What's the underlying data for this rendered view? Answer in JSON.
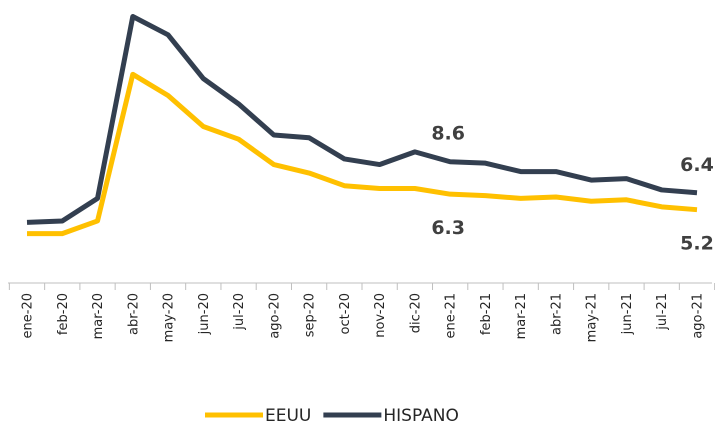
{
  "chart_data": {
    "type": "line",
    "categories": [
      "ene-20",
      "feb-20",
      "mar-20",
      "abr-20",
      "may-20",
      "jun-20",
      "jul-20",
      "ago-20",
      "sep-20",
      "oct-20",
      "nov-20",
      "dic-20",
      "ene-21",
      "feb-21",
      "mar-21",
      "abr-21",
      "may-21",
      "jun-21",
      "jul-21",
      "ago-21"
    ],
    "series": [
      {
        "name": "EEUU",
        "color": "#ffc000",
        "values": [
          3.5,
          3.5,
          4.4,
          14.8,
          13.3,
          11.1,
          10.2,
          8.4,
          7.8,
          6.9,
          6.7,
          6.7,
          6.3,
          6.2,
          6.0,
          6.1,
          5.8,
          5.9,
          5.4,
          5.2
        ],
        "value_labels": [
          null,
          null,
          null,
          null,
          null,
          null,
          null,
          null,
          null,
          null,
          null,
          null,
          "6.3",
          null,
          null,
          null,
          null,
          null,
          null,
          "5.2"
        ]
      },
      {
        "name": "HISPANO",
        "color": "#333f50",
        "values": [
          4.3,
          4.4,
          6.0,
          18.9,
          17.6,
          14.5,
          12.7,
          10.5,
          10.3,
          8.8,
          8.4,
          9.3,
          8.6,
          8.5,
          7.9,
          7.9,
          7.3,
          7.4,
          6.6,
          6.4
        ],
        "value_labels": [
          null,
          null,
          null,
          null,
          null,
          null,
          null,
          null,
          null,
          null,
          null,
          null,
          "8.6",
          null,
          null,
          null,
          null,
          null,
          null,
          "6.4"
        ]
      }
    ],
    "ylim": [
      0,
      20
    ]
  }
}
